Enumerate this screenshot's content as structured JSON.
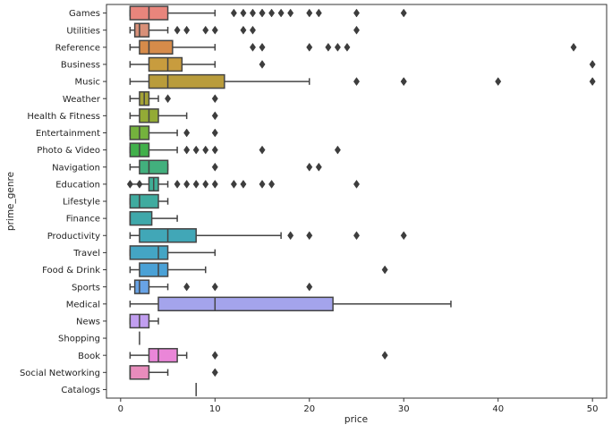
{
  "chart_data": {
    "type": "boxplot",
    "orientation": "horizontal",
    "xlabel": "price",
    "ylabel": "prime_genre",
    "xlim": [
      -1.5,
      51.5
    ],
    "xticks": [
      0,
      10,
      20,
      30,
      40,
      50
    ],
    "grid": false,
    "legend": "none",
    "categories": [
      "Games",
      "Utilities",
      "Reference",
      "Business",
      "Music",
      "Weather",
      "Health & Fitness",
      "Entertainment",
      "Photo & Video",
      "Navigation",
      "Education",
      "Lifestyle",
      "Finance",
      "Productivity",
      "Travel",
      "Food & Drink",
      "Sports",
      "Medical",
      "News",
      "Shopping",
      "Book",
      "Social Networking",
      "Catalogs"
    ],
    "colors": [
      "#e8857c",
      "#d99078",
      "#d68b4a",
      "#c89c3e",
      "#b99c3b",
      "#a4a236",
      "#93ab36",
      "#74b23d",
      "#41b04a",
      "#42b07d",
      "#40ae96",
      "#3fab9f",
      "#3fa8aa",
      "#41a7b7",
      "#44a5c4",
      "#4aa1d6",
      "#68a3e6",
      "#a4a4ec",
      "#c19ef0",
      "#d892ea",
      "#ea86d8",
      "#e88cbc",
      "#ec8aa0"
    ],
    "boxes": [
      {
        "category": "Games",
        "whisker_low": 1,
        "q1": 1,
        "median": 3,
        "q3": 5,
        "whisker_high": 10,
        "outliers": [
          12,
          13,
          14,
          15,
          15,
          16,
          17,
          18,
          20,
          21,
          25,
          30
        ]
      },
      {
        "category": "Utilities",
        "whisker_low": 1,
        "q1": 1.5,
        "median": 2,
        "q3": 3,
        "whisker_high": 5,
        "outliers": [
          6,
          7,
          9,
          10,
          13,
          14,
          25
        ]
      },
      {
        "category": "Reference",
        "whisker_low": 1,
        "q1": 2,
        "median": 3,
        "q3": 5.5,
        "whisker_high": 10,
        "outliers": [
          14,
          15,
          20,
          22,
          23,
          24,
          48
        ]
      },
      {
        "category": "Business",
        "whisker_low": 1,
        "q1": 3,
        "median": 5,
        "q3": 6.5,
        "whisker_high": 10,
        "outliers": [
          15,
          50
        ]
      },
      {
        "category": "Music",
        "whisker_low": 1,
        "q1": 3,
        "median": 5,
        "q3": 11,
        "whisker_high": 20,
        "outliers": [
          25,
          30,
          30,
          40,
          50
        ]
      },
      {
        "category": "Weather",
        "whisker_low": 1,
        "q1": 2,
        "median": 2.5,
        "q3": 3,
        "whisker_high": 4,
        "outliers": [
          5,
          10
        ]
      },
      {
        "category": "Health & Fitness",
        "whisker_low": 1,
        "q1": 2,
        "median": 3,
        "q3": 4,
        "whisker_high": 7,
        "outliers": [
          10
        ]
      },
      {
        "category": "Entertainment",
        "whisker_low": 1,
        "q1": 1,
        "median": 2,
        "q3": 3,
        "whisker_high": 6,
        "outliers": [
          7,
          10
        ]
      },
      {
        "category": "Photo & Video",
        "whisker_low": 1,
        "q1": 1,
        "median": 2,
        "q3": 3,
        "whisker_high": 6,
        "outliers": [
          7,
          8,
          9,
          10,
          15,
          23
        ]
      },
      {
        "category": "Navigation",
        "whisker_low": 1,
        "q1": 2,
        "median": 3,
        "q3": 5,
        "whisker_high": 5,
        "outliers": [
          10,
          20,
          21
        ]
      },
      {
        "category": "Education",
        "whisker_low": 1,
        "q1": 3,
        "median": 3.5,
        "q3": 4,
        "whisker_high": 5,
        "outliers": [
          1,
          2,
          6,
          7,
          8,
          9,
          10,
          12,
          13,
          15,
          16,
          25
        ]
      },
      {
        "category": "Lifestyle",
        "whisker_low": 1,
        "q1": 1,
        "median": 2,
        "q3": 4,
        "whisker_high": 5,
        "outliers": []
      },
      {
        "category": "Finance",
        "whisker_low": 1,
        "q1": 1,
        "median": 1,
        "q3": 3.3,
        "whisker_high": 6,
        "outliers": []
      },
      {
        "category": "Productivity",
        "whisker_low": 1,
        "q1": 2,
        "median": 5,
        "q3": 8,
        "whisker_high": 17,
        "outliers": [
          18,
          20,
          25,
          30
        ]
      },
      {
        "category": "Travel",
        "whisker_low": 1,
        "q1": 1,
        "median": 4,
        "q3": 5,
        "whisker_high": 10,
        "outliers": []
      },
      {
        "category": "Food & Drink",
        "whisker_low": 1,
        "q1": 2,
        "median": 4,
        "q3": 5,
        "whisker_high": 9,
        "outliers": [
          28
        ]
      },
      {
        "category": "Sports",
        "whisker_low": 1,
        "q1": 1.5,
        "median": 2,
        "q3": 3,
        "whisker_high": 5,
        "outliers": [
          7,
          10,
          20
        ]
      },
      {
        "category": "Medical",
        "whisker_low": 1,
        "q1": 4,
        "median": 10,
        "q3": 22.5,
        "whisker_high": 35,
        "outliers": []
      },
      {
        "category": "News",
        "whisker_low": 1,
        "q1": 1,
        "median": 2,
        "q3": 3,
        "whisker_high": 4,
        "outliers": []
      },
      {
        "category": "Shopping",
        "whisker_low": 2,
        "q1": 2,
        "median": 2,
        "q3": 2,
        "whisker_high": 2,
        "outliers": []
      },
      {
        "category": "Book",
        "whisker_low": 1,
        "q1": 3,
        "median": 4,
        "q3": 6,
        "whisker_high": 7,
        "outliers": [
          10,
          28
        ]
      },
      {
        "category": "Social Networking",
        "whisker_low": 1,
        "q1": 1,
        "median": 1,
        "q3": 3,
        "whisker_high": 5,
        "outliers": [
          10
        ]
      },
      {
        "category": "Catalogs",
        "whisker_low": 8,
        "q1": 8,
        "median": 8,
        "q3": 8,
        "whisker_high": 8,
        "outliers": []
      }
    ]
  }
}
